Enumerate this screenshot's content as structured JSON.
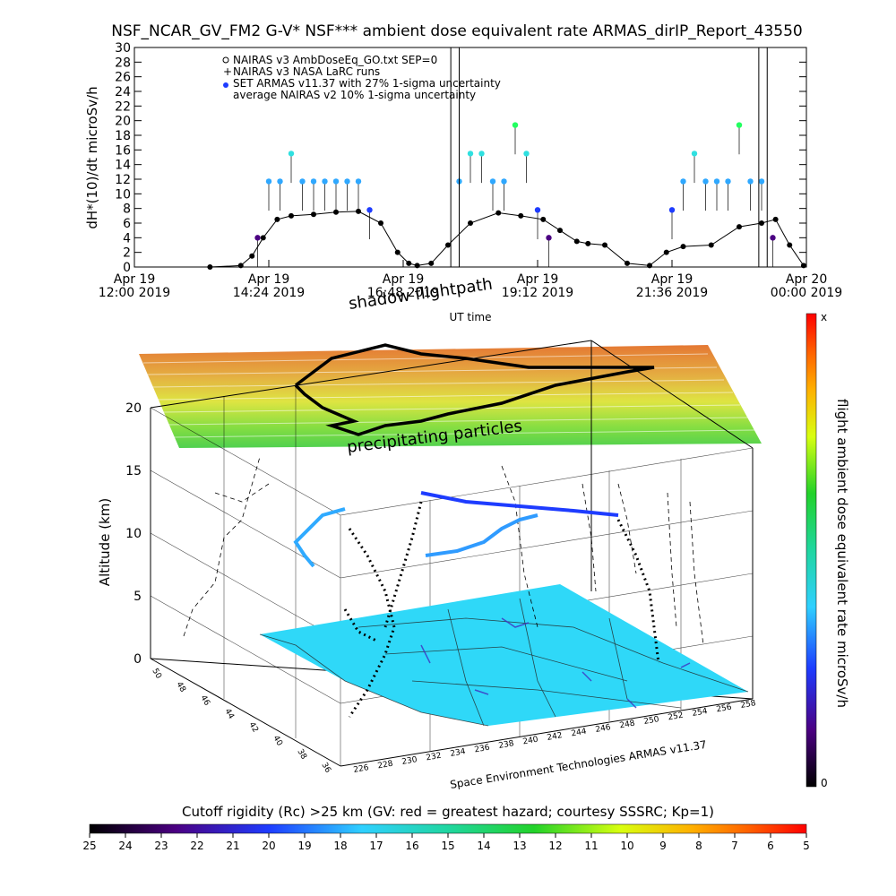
{
  "chart_data": [
    {
      "type": "scatter",
      "title": "NSF_NCAR_GV_FM2 G-V* NSF*** ambient dose equivalent rate ARMAS_dirIP_Report_43550",
      "ylabel": "dH*(10)/dt microSv/h",
      "xlabel": "UT time",
      "ylim": [
        0,
        30
      ],
      "yticks": [
        "0",
        "2",
        "4",
        "6",
        "8",
        "10",
        "12",
        "14",
        "16",
        "18",
        "20",
        "22",
        "24",
        "26",
        "28",
        "30"
      ],
      "xticks": [
        {
          "day": "Apr 19",
          "time": "12:00 2019"
        },
        {
          "day": "Apr 19",
          "time": "14:24 2019"
        },
        {
          "day": "Apr 19",
          "time": "16:48 2019"
        },
        {
          "day": "Apr 19",
          "time": "19:12 2019"
        },
        {
          "day": "Apr 19",
          "time": "21:36 2019"
        },
        {
          "day": "Apr 20",
          "time": "00:00 2019"
        }
      ],
      "legend": [
        "NAIRAS v3 AmbDoseEq_GO.txt SEP=0",
        "NAIRAS v3 NASA LaRC runs",
        "SET ARMAS v11.37 with 27% 1-sigma uncertainty",
        "average NAIRAS v2 10% 1-sigma uncertainty"
      ],
      "grid": false,
      "series": [
        {
          "name": "NAIRAS v3 AmbDoseEq_GO.txt SEP=0",
          "x_hours": [
            13.35,
            13.9,
            14.1,
            14.3,
            14.55,
            14.8,
            15.2,
            15.6,
            16.0,
            16.4,
            16.7,
            16.9,
            17.05,
            17.3,
            17.6,
            18.0,
            18.5,
            18.9,
            19.3,
            19.6,
            19.9,
            20.1,
            20.4,
            20.8,
            21.2,
            21.5,
            21.8,
            22.3,
            22.8,
            23.2,
            23.45,
            23.7,
            23.95
          ],
          "values": [
            0,
            0.2,
            1.5,
            4.0,
            6.5,
            7.0,
            7.2,
            7.5,
            7.6,
            6.0,
            2.0,
            0.5,
            0.2,
            0.5,
            3.0,
            6.0,
            7.4,
            7.0,
            6.5,
            5.0,
            3.5,
            3.2,
            3.0,
            0.5,
            0.2,
            2.0,
            2.8,
            3.0,
            5.5,
            6.0,
            6.5,
            3.0,
            0.2
          ]
        },
        {
          "name": "SET ARMAS v11.37 with 27% 1-sigma uncertainty",
          "x_hours": [
            14.2,
            14.4,
            14.6,
            14.8,
            15.0,
            15.2,
            15.4,
            15.6,
            15.8,
            16.0,
            16.2,
            17.8,
            18.0,
            18.2,
            18.4,
            18.6,
            18.8,
            19.0,
            19.2,
            19.4,
            21.6,
            21.8,
            22.0,
            22.2,
            22.4,
            22.6,
            22.8,
            23.0,
            23.2,
            23.4
          ],
          "values": [
            4,
            11.7,
            11.7,
            15.5,
            11.7,
            11.7,
            11.7,
            11.7,
            11.7,
            11.7,
            7.8,
            11.7,
            15.5,
            15.5,
            11.7,
            11.7,
            19.4,
            15.5,
            7.8,
            4,
            7.8,
            11.7,
            15.5,
            11.7,
            11.7,
            11.7,
            19.4,
            11.7,
            11.7,
            4
          ]
        }
      ],
      "spikes_x_hours": [
        17.65,
        17.8,
        23.15,
        23.3
      ]
    },
    {
      "type": "scatter",
      "subtype": "3d-flightpath",
      "zlabel": "Altitude (km)",
      "zticks": [
        "0",
        "5",
        "10",
        "15",
        "20"
      ],
      "lat_ticks": [
        "50",
        "48",
        "46",
        "44",
        "42",
        "40",
        "38",
        "36"
      ],
      "lon_ticks": [
        "226",
        "228",
        "230",
        "232",
        "234",
        "236",
        "238",
        "240",
        "242",
        "244",
        "246",
        "248",
        "250",
        "252",
        "254",
        "256",
        "258"
      ],
      "annotations": [
        "shadow flightpath",
        "precipitating particles",
        "Space Environment Technologies ARMAS v11.37"
      ],
      "colorbar": {
        "label": "flight ambient dose equivalent rate microSv/h",
        "top": "x",
        "bottom": "0"
      }
    },
    {
      "type": "heatmap",
      "subtype": "colorbar",
      "title": "Cutoff rigidity (Rc) >25 km (GV: red = greatest hazard; courtesy SSSRC; Kp=1)",
      "ticks": [
        "25",
        "24",
        "23",
        "22",
        "21",
        "20",
        "19",
        "18",
        "17",
        "16",
        "15",
        "14",
        "13",
        "12",
        "11",
        "10",
        "9",
        "8",
        "7",
        "6",
        "5"
      ]
    }
  ]
}
